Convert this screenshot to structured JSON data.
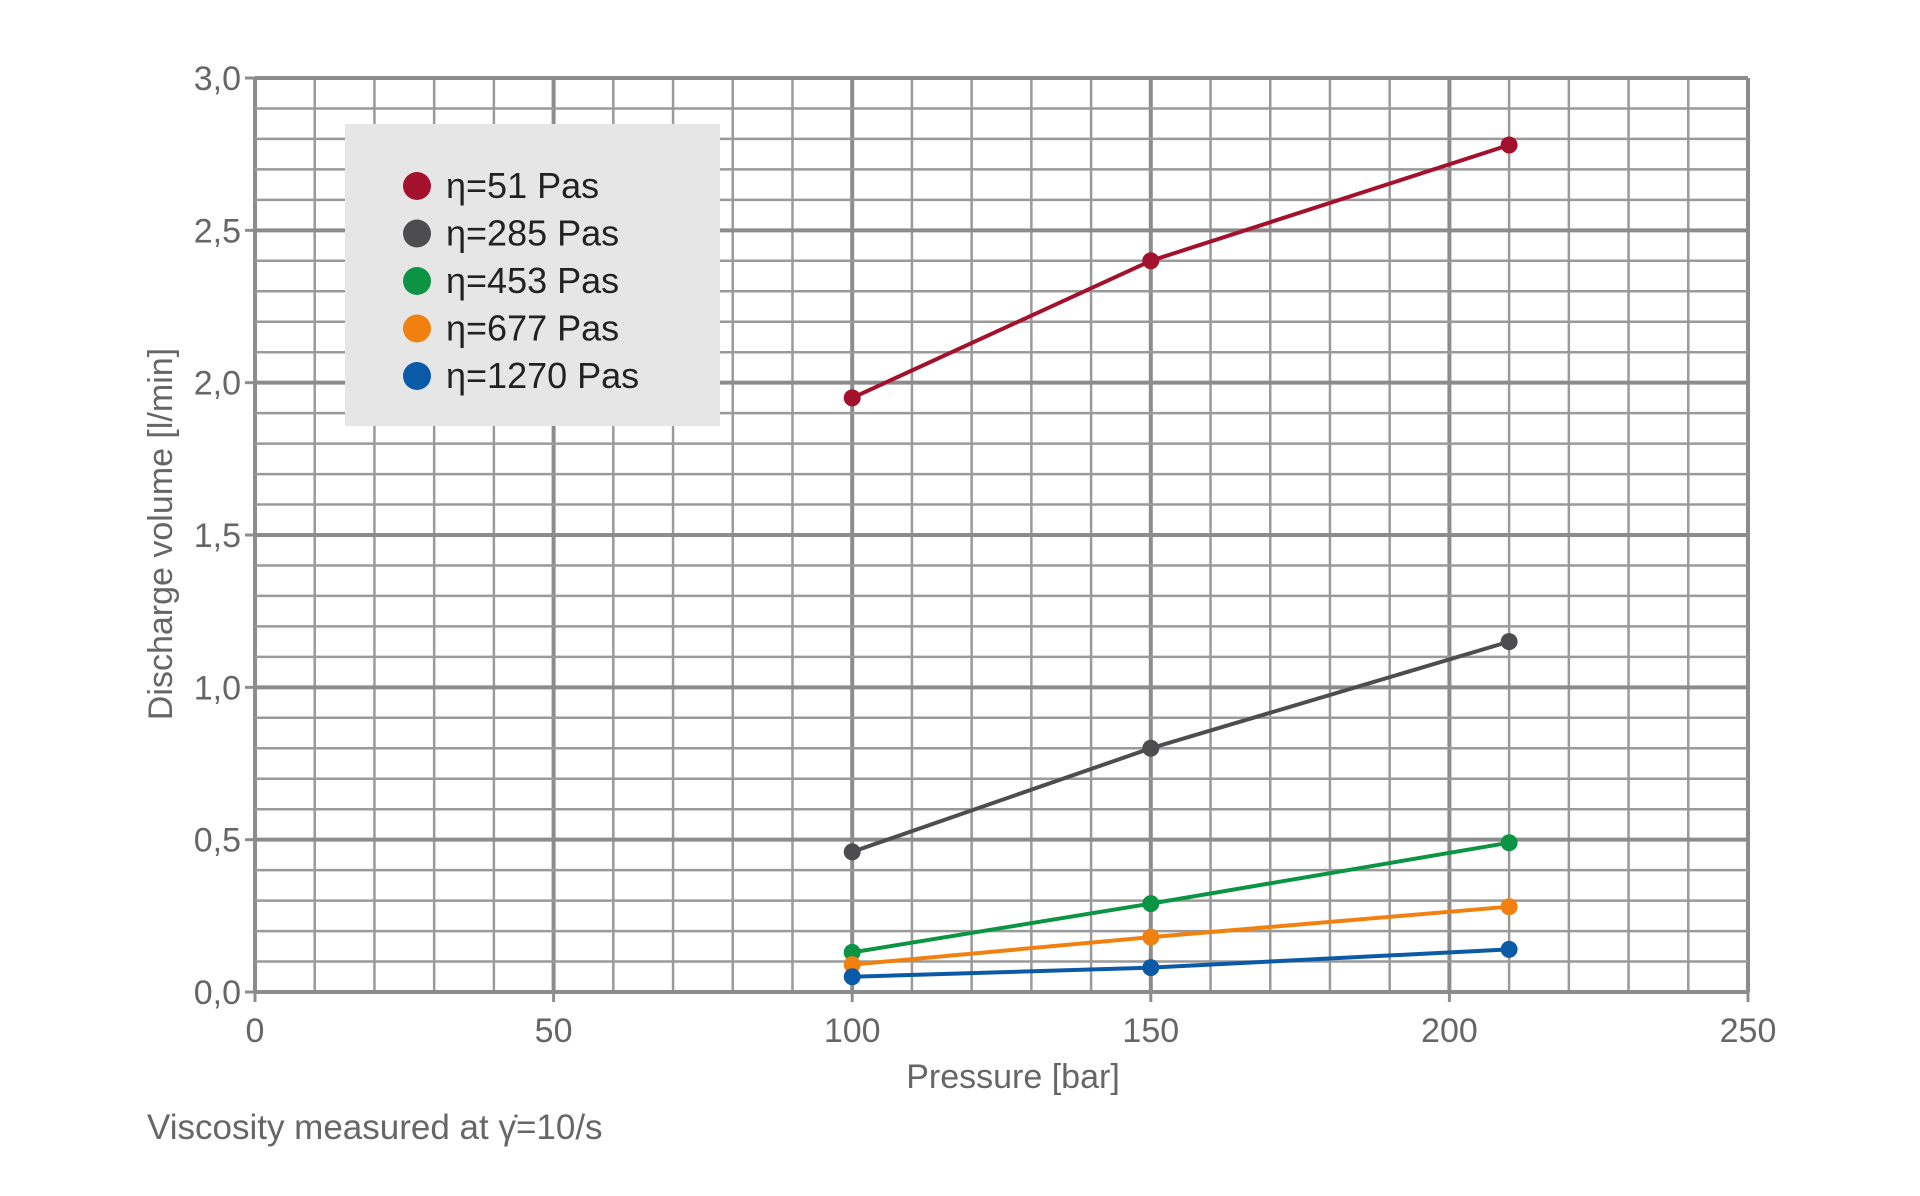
{
  "chart_data": {
    "type": "line",
    "xlabel": "Pressure [bar]",
    "ylabel": "Discharge volume [l/min]",
    "xlim": [
      0,
      250
    ],
    "ylim": [
      0,
      3.0
    ],
    "x_ticks": [
      "0",
      "50",
      "100",
      "150",
      "200",
      "250"
    ],
    "y_ticks": [
      "0,0",
      "0,5",
      "1,0",
      "1,5",
      "2,0",
      "2,5",
      "3,0"
    ],
    "grid": true,
    "legend_position": "top-left",
    "x": [
      100,
      150,
      210
    ],
    "series": [
      {
        "name": "η=51 Pas",
        "color": "#a3112d",
        "values": [
          1.95,
          2.4,
          2.78
        ]
      },
      {
        "name": "η=285 Pas",
        "color": "#4d4d4f",
        "values": [
          0.46,
          0.8,
          1.15
        ]
      },
      {
        "name": "η=453 Pas",
        "color": "#0b9444",
        "values": [
          0.13,
          0.29,
          0.49
        ]
      },
      {
        "name": "η=677 Pas",
        "color": "#f08010",
        "values": [
          0.09,
          0.18,
          0.28
        ]
      },
      {
        "name": "η=1270 Pas",
        "color": "#0a5aa8",
        "values": [
          0.05,
          0.08,
          0.14
        ]
      }
    ]
  },
  "footnote": "Viscosity measured at γ̇=10/s"
}
